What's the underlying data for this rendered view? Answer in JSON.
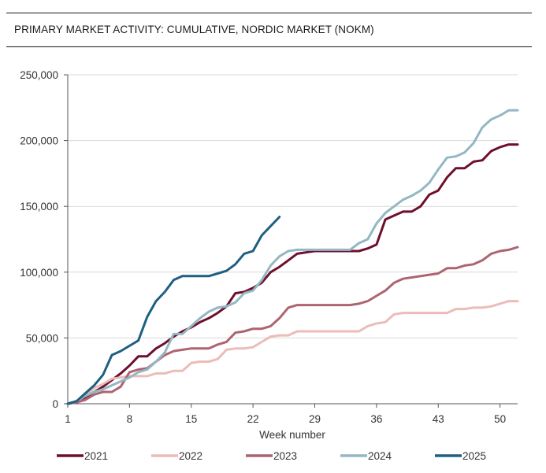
{
  "chart_data": {
    "type": "line",
    "title": "PRIMARY MARKET ACTIVITY: CUMULATIVE, NORDIC MARKET (NOKM)",
    "xlabel": "Week number",
    "ylabel": "",
    "xlim": [
      1,
      52
    ],
    "ylim": [
      0,
      250000
    ],
    "xticks": [
      1,
      8,
      15,
      22,
      29,
      36,
      43,
      50
    ],
    "yticks": [
      0,
      50000,
      100000,
      150000,
      200000,
      250000
    ],
    "ytick_labels": [
      "0",
      "50,000",
      "100,000",
      "150,000",
      "200,000",
      "250,000"
    ],
    "grid": "horizontal",
    "legend_position": "bottom",
    "series": [
      {
        "name": "2021",
        "color": "#6e0f2b",
        "x": [
          1,
          2,
          3,
          4,
          5,
          6,
          7,
          8,
          9,
          10,
          11,
          12,
          13,
          14,
          15,
          16,
          17,
          18,
          19,
          20,
          21,
          22,
          23,
          24,
          25,
          26,
          27,
          28,
          29,
          30,
          31,
          32,
          33,
          34,
          35,
          36,
          37,
          38,
          39,
          40,
          41,
          42,
          43,
          44,
          45,
          46,
          47,
          48,
          49,
          50,
          51,
          52
        ],
        "values": [
          0,
          1000,
          5000,
          9000,
          13000,
          18000,
          23000,
          29000,
          36000,
          36000,
          42000,
          46000,
          51000,
          55000,
          58000,
          62000,
          65000,
          69000,
          74000,
          84000,
          85000,
          88000,
          92000,
          100000,
          104000,
          109000,
          114000,
          115000,
          116000,
          116000,
          116000,
          116000,
          116000,
          116000,
          118000,
          121000,
          140000,
          143000,
          146000,
          146000,
          150000,
          159000,
          162000,
          172000,
          179000,
          179000,
          184000,
          185000,
          192000,
          195000,
          197000,
          197000
        ]
      },
      {
        "name": "2022",
        "color": "#ebbcb9",
        "x": [
          1,
          2,
          3,
          4,
          5,
          6,
          7,
          8,
          9,
          10,
          11,
          12,
          13,
          14,
          15,
          16,
          17,
          18,
          19,
          20,
          21,
          22,
          23,
          24,
          25,
          26,
          27,
          28,
          29,
          30,
          31,
          32,
          33,
          34,
          35,
          36,
          37,
          38,
          39,
          40,
          41,
          42,
          43,
          44,
          45,
          46,
          47,
          48,
          49,
          50,
          51,
          52
        ],
        "values": [
          0,
          2000,
          6000,
          12000,
          15000,
          19000,
          20000,
          21000,
          21000,
          21000,
          23000,
          23000,
          25000,
          25000,
          31000,
          32000,
          32000,
          34000,
          41000,
          42000,
          42000,
          43000,
          47000,
          51000,
          52000,
          52000,
          55000,
          55000,
          55000,
          55000,
          55000,
          55000,
          55000,
          55000,
          59000,
          61000,
          62000,
          68000,
          69000,
          69000,
          69000,
          69000,
          69000,
          69000,
          72000,
          72000,
          73000,
          73000,
          74000,
          76000,
          78000,
          78000
        ]
      },
      {
        "name": "2023",
        "color": "#ad6470",
        "x": [
          1,
          2,
          3,
          4,
          5,
          6,
          7,
          8,
          9,
          10,
          11,
          12,
          13,
          14,
          15,
          16,
          17,
          18,
          19,
          20,
          21,
          22,
          23,
          24,
          25,
          26,
          27,
          28,
          29,
          30,
          31,
          32,
          33,
          34,
          35,
          36,
          37,
          38,
          39,
          40,
          41,
          42,
          43,
          44,
          45,
          46,
          47,
          48,
          49,
          50,
          51,
          52
        ],
        "values": [
          0,
          1000,
          3000,
          7000,
          9000,
          9000,
          13000,
          24000,
          26000,
          27000,
          32000,
          37000,
          40000,
          41000,
          42000,
          42000,
          42000,
          45000,
          47000,
          54000,
          55000,
          57000,
          57000,
          59000,
          65000,
          73000,
          75000,
          75000,
          75000,
          75000,
          75000,
          75000,
          75000,
          76000,
          78000,
          82000,
          86000,
          92000,
          95000,
          96000,
          97000,
          98000,
          99000,
          103000,
          103000,
          105000,
          106000,
          109000,
          114000,
          116000,
          117000,
          119000
        ]
      },
      {
        "name": "2024",
        "color": "#94b7c4",
        "x": [
          1,
          2,
          3,
          4,
          5,
          6,
          7,
          8,
          9,
          10,
          11,
          12,
          13,
          14,
          15,
          16,
          17,
          18,
          19,
          20,
          21,
          22,
          23,
          24,
          25,
          26,
          27,
          28,
          29,
          30,
          31,
          32,
          33,
          34,
          35,
          36,
          37,
          38,
          39,
          40,
          41,
          42,
          43,
          44,
          45,
          46,
          47,
          48,
          49,
          50,
          51,
          52
        ],
        "values": [
          0,
          2000,
          6000,
          9000,
          11000,
          14000,
          17000,
          20000,
          24000,
          26000,
          32000,
          39000,
          53000,
          53000,
          59000,
          65000,
          70000,
          73000,
          74000,
          77000,
          84000,
          86000,
          94000,
          105000,
          112000,
          116000,
          117000,
          117000,
          117000,
          117000,
          117000,
          117000,
          117000,
          122000,
          125000,
          137000,
          145000,
          150000,
          155000,
          158000,
          162000,
          168000,
          178000,
          187000,
          188000,
          191000,
          198000,
          210000,
          216000,
          219000,
          223000,
          223000
        ]
      },
      {
        "name": "2025",
        "color": "#1f5f82",
        "x": [
          1,
          2,
          3,
          4,
          5,
          6,
          7,
          8,
          9,
          10,
          11,
          12,
          13,
          14,
          15,
          16,
          17,
          18,
          19,
          20,
          21,
          22,
          23,
          24,
          25
        ],
        "values": [
          0,
          2000,
          8000,
          14000,
          22000,
          37000,
          40000,
          44000,
          48000,
          66000,
          78000,
          85000,
          94000,
          97000,
          97000,
          97000,
          97000,
          99000,
          101000,
          106000,
          114000,
          116000,
          128000,
          135000,
          142000
        ]
      }
    ]
  }
}
